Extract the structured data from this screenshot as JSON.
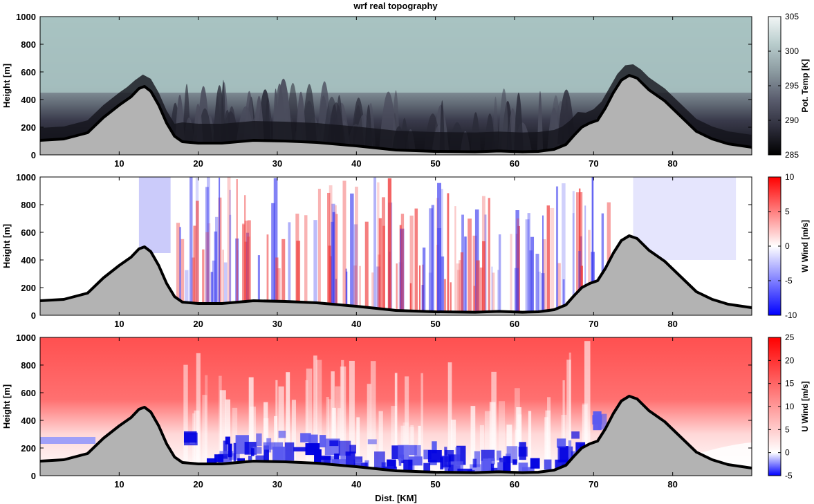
{
  "title": "wrf real topography",
  "chart_data": [
    {
      "type": "heatmap",
      "panel": "potential-temperature",
      "ylabel": "Height [m]",
      "xlabel": "",
      "xlim": [
        0,
        90
      ],
      "ylim": [
        0,
        1000
      ],
      "xticks": [
        10,
        20,
        30,
        40,
        50,
        60,
        70,
        80
      ],
      "yticks": [
        0,
        200,
        400,
        600,
        800,
        1000
      ],
      "colorbar": {
        "label": "Pot. Temp [K]",
        "min": 285,
        "max": 305,
        "ticks": [
          285,
          290,
          295,
          300,
          305
        ],
        "stops": [
          "#000000",
          "#2e2e3c",
          "#5a5d6e",
          "#8b9aa0",
          "#b8cccc",
          "#f2f6f6"
        ]
      }
    },
    {
      "type": "heatmap",
      "panel": "vertical-wind",
      "ylabel": "Height [m]",
      "xlabel": "",
      "xlim": [
        0,
        90
      ],
      "ylim": [
        0,
        1000
      ],
      "xticks": [
        10,
        20,
        30,
        40,
        50,
        60,
        70,
        80
      ],
      "yticks": [
        0,
        200,
        400,
        600,
        800,
        1000
      ],
      "colorbar": {
        "label": "W Wind [m/s]",
        "min": -10,
        "max": 10,
        "ticks": [
          -10,
          -5,
          0,
          5,
          10
        ],
        "stops": [
          "#0000ff",
          "#ffffff",
          "#ff0000"
        ]
      }
    },
    {
      "type": "heatmap",
      "panel": "horizontal-wind",
      "ylabel": "Height [m]",
      "xlabel": "Dist. [KM]",
      "xlim": [
        0,
        90
      ],
      "ylim": [
        0,
        1000
      ],
      "xticks": [
        10,
        20,
        30,
        40,
        50,
        60,
        70,
        80
      ],
      "yticks": [
        0,
        200,
        400,
        600,
        800,
        1000
      ],
      "colorbar": {
        "label": "U Wind [m/s]",
        "min": -5,
        "max": 25,
        "ticks": [
          -5,
          0,
          5,
          10,
          15,
          20,
          25
        ],
        "stops": [
          "#0000ff",
          "#ffffff",
          "#ff0000"
        ]
      }
    }
  ],
  "terrain": {
    "x": [
      0,
      3,
      6,
      8,
      10,
      11.5,
      12.5,
      13.2,
      14,
      15,
      16,
      17,
      18,
      20,
      23,
      27,
      31,
      35,
      40,
      45,
      50,
      55,
      58,
      61,
      63,
      65,
      66.5,
      67.5,
      68.5,
      69.5,
      70.5,
      71.5,
      72.5,
      73.5,
      74.5,
      75.5,
      77,
      79,
      81,
      83,
      85,
      87,
      90
    ],
    "y": [
      105,
      115,
      160,
      270,
      360,
      420,
      480,
      495,
      460,
      360,
      230,
      135,
      95,
      85,
      85,
      105,
      100,
      90,
      65,
      35,
      25,
      22,
      28,
      22,
      25,
      40,
      75,
      140,
      200,
      230,
      250,
      340,
      450,
      540,
      575,
      555,
      470,
      390,
      280,
      170,
      115,
      80,
      55
    ]
  }
}
